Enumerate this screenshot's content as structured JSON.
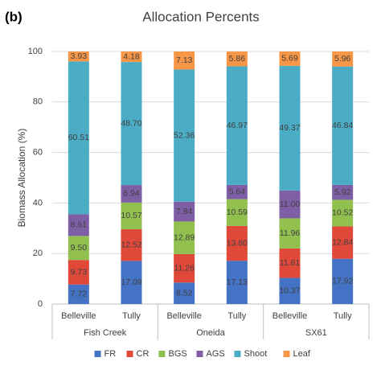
{
  "chart_data": {
    "type": "stacked_bar",
    "panel_label": "(b)",
    "title": "Allocation Percents",
    "y_label": "Biomass Allocation (%)",
    "categories": [
      "Belleville",
      "Tully",
      "Belleville",
      "Tully",
      "Belleville",
      "Tully"
    ],
    "groups": [
      "Fish Creek",
      "Oneida",
      "SX61"
    ],
    "ylim": [
      0,
      100
    ],
    "yticks": [
      0,
      20,
      40,
      60,
      80,
      100
    ],
    "grid": true,
    "legend": "bottom",
    "series": [
      {
        "name": "FR",
        "color": "#4472c4",
        "values": [
          7.72,
          17.09,
          8.52,
          17.13,
          10.37,
          17.92
        ],
        "value_labels": [
          "7.72",
          "17.09",
          "8.52",
          "17.13",
          "10.37",
          "17.92"
        ]
      },
      {
        "name": "CR",
        "color": "#e0483a",
        "values": [
          9.73,
          12.52,
          11.26,
          13.8,
          11.61,
          12.84
        ],
        "value_labels": [
          "9.73",
          "12.52",
          "11.26",
          "13.80",
          "11.61",
          "12.84"
        ]
      },
      {
        "name": "BGS",
        "color": "#92c04f",
        "values": [
          9.5,
          10.57,
          12.89,
          10.59,
          11.96,
          10.52
        ],
        "value_labels": [
          "9.50",
          "10.57",
          "12.89",
          "10.59",
          "11.96",
          "10.52"
        ]
      },
      {
        "name": "AGS",
        "color": "#7e5fa6",
        "values": [
          8.61,
          6.94,
          7.84,
          5.64,
          11.0,
          5.92
        ],
        "value_labels": [
          "8.61",
          "6.94",
          "7.84",
          "5.64",
          "11.00",
          "5.92"
        ]
      },
      {
        "name": "Shoot",
        "color": "#4bacc6",
        "values": [
          60.51,
          48.7,
          52.36,
          46.97,
          49.37,
          46.84
        ],
        "value_labels": [
          "60.51",
          "48.70",
          "52.36",
          "46.97",
          "49.37",
          "46.84"
        ]
      },
      {
        "name": "Leaf",
        "color": "#f79646",
        "values": [
          3.93,
          4.18,
          7.13,
          5.86,
          5.69,
          5.96
        ],
        "value_labels": [
          "3.93",
          "4.18",
          "7.13",
          "5.86",
          "5.69",
          "5.96"
        ]
      }
    ]
  }
}
